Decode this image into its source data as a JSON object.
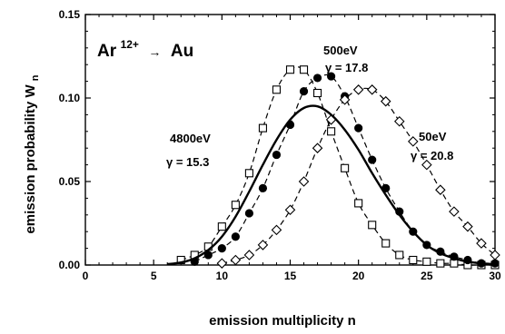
{
  "chart_data": {
    "type": "line",
    "xlabel": "emission multiplicity  n",
    "ylabel": "emission probability  W",
    "ylabel_sub": "n",
    "xlim": [
      0,
      30
    ],
    "ylim": [
      0,
      0.15
    ],
    "xticks": [
      0,
      5,
      10,
      15,
      20,
      25,
      30
    ],
    "yticks": [
      0.0,
      0.05,
      0.1,
      0.15
    ],
    "ytick_labels": [
      "0.00",
      "0.05",
      "0.10",
      "0.15"
    ],
    "grid": false,
    "title": {
      "projectile": "Ar",
      "charge": "12+",
      "arrow": "→",
      "target": "Au"
    },
    "annotations": [
      {
        "energy": "4800eV",
        "gamma": "γ = 15.3"
      },
      {
        "energy": "500eV",
        "gamma": "γ = 17.8"
      },
      {
        "energy": "50eV",
        "gamma": "γ = 20.8"
      }
    ],
    "series": [
      {
        "marker": "open-square",
        "line": "dashed",
        "x": [
          7,
          8,
          9,
          10,
          11,
          12,
          13,
          14,
          15,
          16,
          17,
          18,
          19,
          20,
          21,
          22,
          23,
          24,
          25,
          26,
          27,
          28,
          29,
          30
        ],
        "y": [
          0.003,
          0.006,
          0.011,
          0.023,
          0.036,
          0.055,
          0.082,
          0.105,
          0.117,
          0.117,
          0.103,
          0.08,
          0.058,
          0.037,
          0.024,
          0.013,
          0.006,
          0.003,
          0.002,
          0.001,
          0.001,
          0.0,
          0.0,
          0.0
        ]
      },
      {
        "marker": "filled-circle",
        "line": "dashed",
        "x": [
          8,
          9,
          10,
          11,
          12,
          13,
          14,
          15,
          16,
          17,
          18,
          19,
          20,
          21,
          22,
          23,
          24,
          25,
          26,
          27,
          28,
          29,
          30
        ],
        "y": [
          0.002,
          0.006,
          0.01,
          0.017,
          0.031,
          0.046,
          0.066,
          0.084,
          0.104,
          0.112,
          0.113,
          0.101,
          0.082,
          0.063,
          0.046,
          0.032,
          0.02,
          0.012,
          0.008,
          0.005,
          0.003,
          0.001,
          0.001
        ]
      },
      {
        "marker": "open-diamond",
        "line": "dashed",
        "x": [
          10,
          11,
          12,
          13,
          14,
          15,
          16,
          17,
          18,
          19,
          20,
          21,
          22,
          23,
          24,
          25,
          26,
          27,
          28,
          29,
          30
        ],
        "y": [
          0.001,
          0.003,
          0.006,
          0.012,
          0.021,
          0.033,
          0.05,
          0.07,
          0.087,
          0.099,
          0.105,
          0.105,
          0.098,
          0.086,
          0.074,
          0.06,
          0.045,
          0.032,
          0.023,
          0.013,
          0.006
        ]
      },
      {
        "marker": "none",
        "line": "solid",
        "x": [
          6,
          7,
          8,
          9,
          10,
          11,
          12,
          13,
          14,
          15,
          16,
          17,
          18,
          19,
          20,
          21,
          22,
          23,
          24,
          25,
          26,
          27,
          28,
          29,
          30
        ],
        "y": [
          0.0005,
          0.0015,
          0.004,
          0.009,
          0.017,
          0.029,
          0.044,
          0.06,
          0.075,
          0.087,
          0.094,
          0.095,
          0.09,
          0.081,
          0.069,
          0.055,
          0.042,
          0.03,
          0.02,
          0.012,
          0.007,
          0.004,
          0.002,
          0.001,
          0.0005
        ]
      }
    ]
  }
}
